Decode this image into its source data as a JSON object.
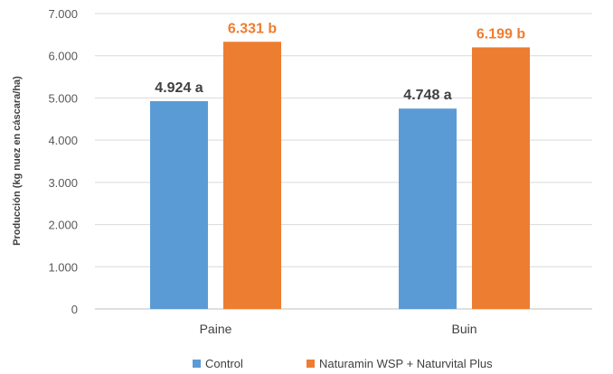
{
  "chart_data": {
    "type": "bar",
    "categories": [
      "Paine",
      "Buin"
    ],
    "ylabel": "Producción (kg nuez en cáscara/ha)",
    "ylim": [
      0,
      7000
    ],
    "yticks": [
      {
        "value": 0,
        "label": "0"
      },
      {
        "value": 1000,
        "label": "1.000"
      },
      {
        "value": 2000,
        "label": "2.000"
      },
      {
        "value": 3000,
        "label": "3.000"
      },
      {
        "value": 4000,
        "label": "4.000"
      },
      {
        "value": 5000,
        "label": "5.000"
      },
      {
        "value": 6000,
        "label": "6.000"
      },
      {
        "value": 7000,
        "label": "7.000"
      }
    ],
    "grid": true,
    "legend_position": "bottom",
    "series": [
      {
        "name": "Control",
        "color": "#5b9bd5",
        "label_color": "#404040",
        "values": [
          4924,
          4748
        ],
        "labels": [
          "4.924 a",
          "4.748 a"
        ]
      },
      {
        "name": "Naturamin WSP + Naturvital Plus",
        "color": "#ed7d31",
        "label_color": "#ed7d31",
        "values": [
          6331,
          6199
        ],
        "labels": [
          "6.331 b",
          "6.199 b"
        ]
      }
    ]
  }
}
